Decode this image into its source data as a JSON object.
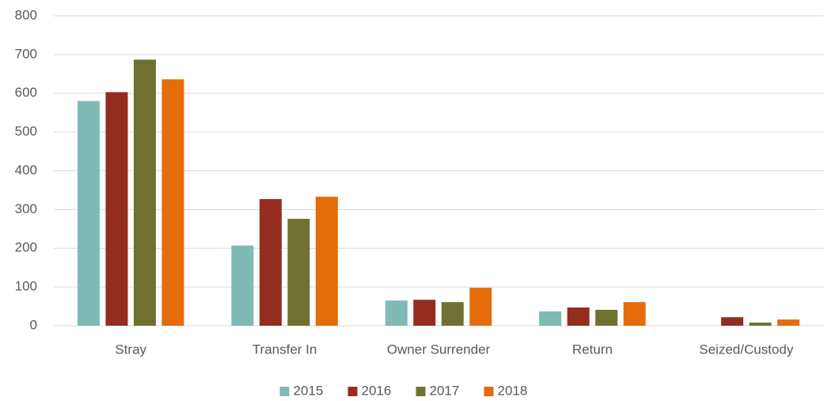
{
  "chart_data": {
    "type": "bar",
    "categories": [
      "Stray",
      "Transfer In",
      "Owner Surrender",
      "Return",
      "Seized/Custody"
    ],
    "series": [
      {
        "name": "2015",
        "color": "#7fbab5",
        "values": [
          580,
          207,
          65,
          37,
          0
        ]
      },
      {
        "name": "2016",
        "color": "#952c20",
        "values": [
          603,
          327,
          67,
          47,
          22
        ]
      },
      {
        "name": "2017",
        "color": "#6e7132",
        "values": [
          687,
          276,
          61,
          41,
          8
        ]
      },
      {
        "name": "2018",
        "color": "#e46c0a",
        "values": [
          636,
          333,
          98,
          61,
          16
        ]
      }
    ],
    "ylim": [
      0,
      800
    ],
    "yticks": [
      0,
      100,
      200,
      300,
      400,
      500,
      600,
      700,
      800
    ],
    "grid": true,
    "legend": "bottom"
  }
}
